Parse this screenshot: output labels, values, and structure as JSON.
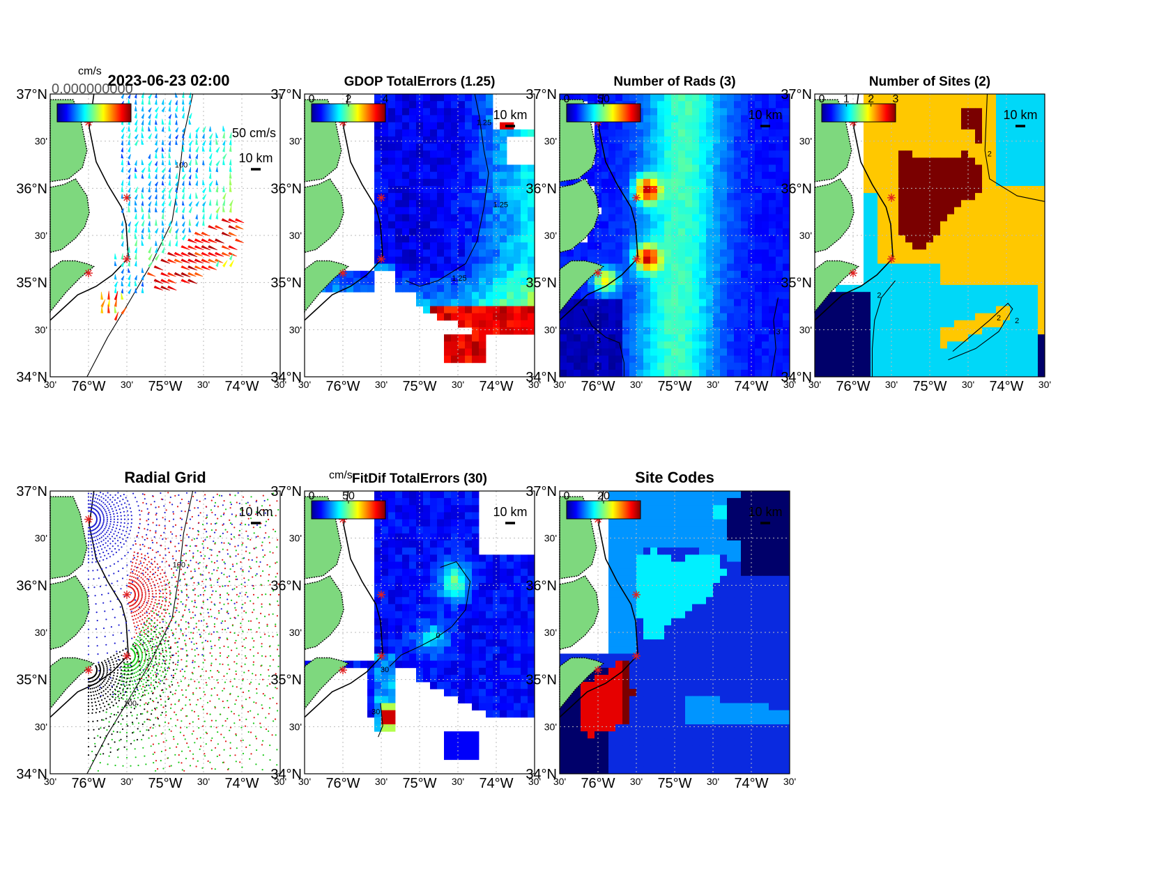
{
  "colors": {
    "land": "#7ed87e",
    "site_marker": "#e02020",
    "coast": "#000000",
    "grid": "#bbbbbb",
    "radial_site_colors": [
      "#2020d0",
      "#e01818",
      "#18c818",
      "#000000"
    ],
    "site_code_colors": [
      "#00006a",
      "#0a2ae0",
      "#0095ff",
      "#00f0ff",
      "#e60000",
      "#7a0000"
    ],
    "sites_colors": [
      "#00006a",
      "#00d8f8",
      "#ffc800",
      "#7a0000"
    ]
  },
  "axes": {
    "lat_labels": [
      "37°N",
      "30'",
      "36°N",
      "30'",
      "35°N",
      "30'",
      "34°N"
    ],
    "lon_labels": [
      "30'",
      "76°W",
      "30'",
      "75°W",
      "30'",
      "74°W",
      "30'"
    ],
    "lat_range": [
      34,
      37
    ],
    "lon_range": [
      -76.5,
      -73.5
    ]
  },
  "scale_label": "10 km",
  "sites": [
    {
      "lon": -76.0,
      "lat": 36.7
    },
    {
      "lon": -75.5,
      "lat": 35.9
    },
    {
      "lon": -75.5,
      "lat": 35.25
    },
    {
      "lon": -76.0,
      "lat": 35.1
    }
  ],
  "chart_data": [
    {
      "type": "quiver",
      "title": "2023-06-23 02:00",
      "units": "cm/s",
      "overlay_text": "0.000000000",
      "arrow_legend": "50 cm/s",
      "contour_label": "100",
      "colorbar_ticks": []
    },
    {
      "type": "heatmap",
      "title": "GDOP TotalErrors (1.25)",
      "colorbar_ticks": [
        "0",
        "2",
        "4"
      ],
      "colorbar_range": [
        0,
        4
      ],
      "contour_label": "1.25"
    },
    {
      "type": "heatmap",
      "title": "Number of Rads (3)",
      "colorbar_ticks": [
        "0",
        "50"
      ],
      "colorbar_range": [
        0,
        100
      ],
      "contour_label": "3"
    },
    {
      "type": "heatmap",
      "title": "Number of Sites (2)",
      "colorbar_ticks": [
        "0",
        "1",
        "2",
        "3"
      ],
      "colorbar_range": [
        0,
        3
      ],
      "contour_label": "2"
    },
    {
      "type": "scatter",
      "title": "Radial Grid",
      "contour_label": "100",
      "colorbar_ticks": []
    },
    {
      "type": "heatmap",
      "title": "FitDif TotalErrors (30)",
      "units": "cm/s",
      "colorbar_ticks": [
        "0",
        "50"
      ],
      "colorbar_range": [
        0,
        100
      ],
      "contour_label": "30"
    },
    {
      "type": "heatmap",
      "title": "Site Codes",
      "colorbar_ticks": [
        "0",
        "20"
      ],
      "colorbar_range": [
        0,
        40
      ]
    }
  ]
}
